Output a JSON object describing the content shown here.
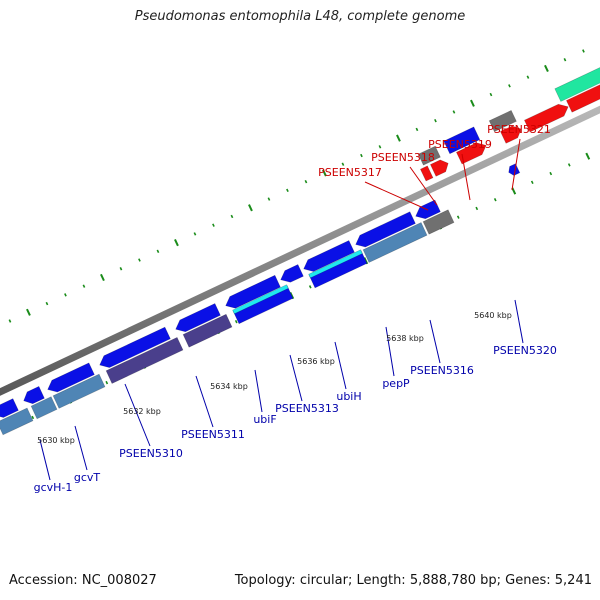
{
  "title": "Pseudomonas entomophila L48, complete genome",
  "footer": {
    "accession_label": "Accession:",
    "accession": "NC_008027",
    "topology_label": "Topology:",
    "topology": "circular",
    "length_label": "Length:",
    "length": "5,888,780 bp",
    "genes_label": "Genes:",
    "genes": "5,241"
  },
  "colors": {
    "backbone": "#808080",
    "tick": "#1a8c1a",
    "reverse_strand_label": "#0000aa",
    "forward_strand_label": "#cc0000",
    "gene_blue": "#0a10e6",
    "gene_dark_purple": "#4a3f8c",
    "gene_steel_blue": "#4f85b5",
    "gene_cyan": "#20e8f0",
    "gene_red": "#f01010",
    "gene_grey": "#707070",
    "gene_teal": "#20e6a0"
  },
  "scale_labels": [
    "5630 kbp",
    "5632 kbp",
    "5634 kbp",
    "5636 kbp",
    "5638 kbp",
    "5640 kbp"
  ],
  "gene_labels_reverse": [
    "gcvH-1",
    "gcvT",
    "PSEEN5310",
    "PSEEN5311",
    "ubiF",
    "PSEEN5313",
    "ubiH",
    "pepP",
    "PSEEN5316",
    "PSEEN5320"
  ],
  "gene_labels_forward": [
    "PSEEN5317",
    "PSEEN5318",
    "PSEEN5319",
    "PSEEN5321"
  ]
}
